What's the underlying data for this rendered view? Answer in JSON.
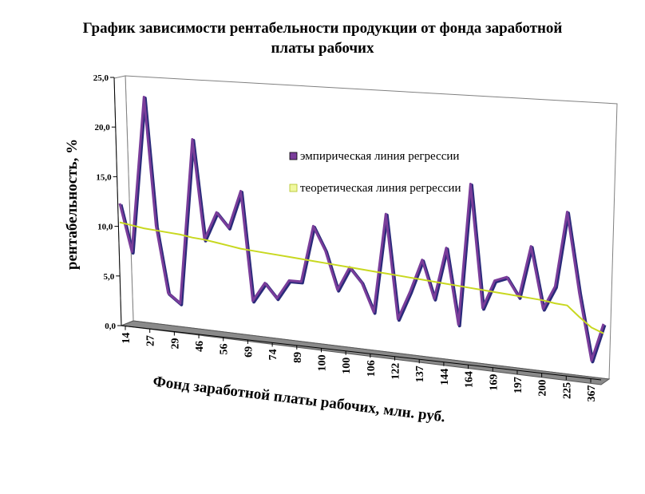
{
  "chart_data": {
    "type": "line",
    "title_line1": "График зависимости рентабельности продукции от фонда заработной",
    "title_line2": "платы рабочих",
    "xlabel": "Фонд заработной платы рабочих, млн. руб.",
    "ylabel": "рентабельность, %",
    "ylim": [
      0,
      25
    ],
    "y_ticks": [
      "0,0",
      "5,0",
      "10,0",
      "15,0",
      "20,0",
      "25,0"
    ],
    "x_tick_labels": [
      "14",
      "27",
      "29",
      "46",
      "56",
      "69",
      "74",
      "89",
      "100",
      "100",
      "106",
      "122",
      "137",
      "144",
      "164",
      "169",
      "197",
      "200",
      "225",
      "367"
    ],
    "series": [
      {
        "name": "эмпирическая линия регрессии",
        "color": "#7a3d9a",
        "values": [
          13.0,
          8.0,
          24.5,
          11.0,
          4.0,
          3.0,
          20.5,
          10.0,
          13.0,
          11.5,
          15.5,
          4.0,
          6.0,
          4.5,
          6.5,
          6.5,
          12.5,
          10.0,
          6.0,
          8.5,
          7.0,
          4.0,
          14.5,
          3.5,
          6.5,
          10.0,
          6.0,
          11.5,
          3.5,
          18.5,
          5.5,
          8.5,
          9.0,
          7.0,
          12.5,
          6.0,
          8.5,
          16.5,
          8.0,
          1.0,
          5.0
        ]
      },
      {
        "name": "теоретическая линия регрессии",
        "color": "#c8d820",
        "values": [
          11.0,
          10.8,
          10.6,
          10.5,
          10.4,
          10.3,
          10.1,
          10.0,
          9.8,
          9.6,
          9.4,
          9.3,
          9.2,
          9.1,
          9.0,
          8.9,
          8.8,
          8.7,
          8.6,
          8.5,
          8.4,
          8.3,
          8.2,
          8.1,
          8.0,
          7.9,
          7.8,
          7.7,
          7.6,
          7.5,
          7.4,
          7.3,
          7.2,
          7.1,
          7.0,
          6.9,
          6.7,
          6.6,
          5.5,
          4.5,
          4.0
        ]
      }
    ],
    "legend_position": "right",
    "grid": false
  }
}
